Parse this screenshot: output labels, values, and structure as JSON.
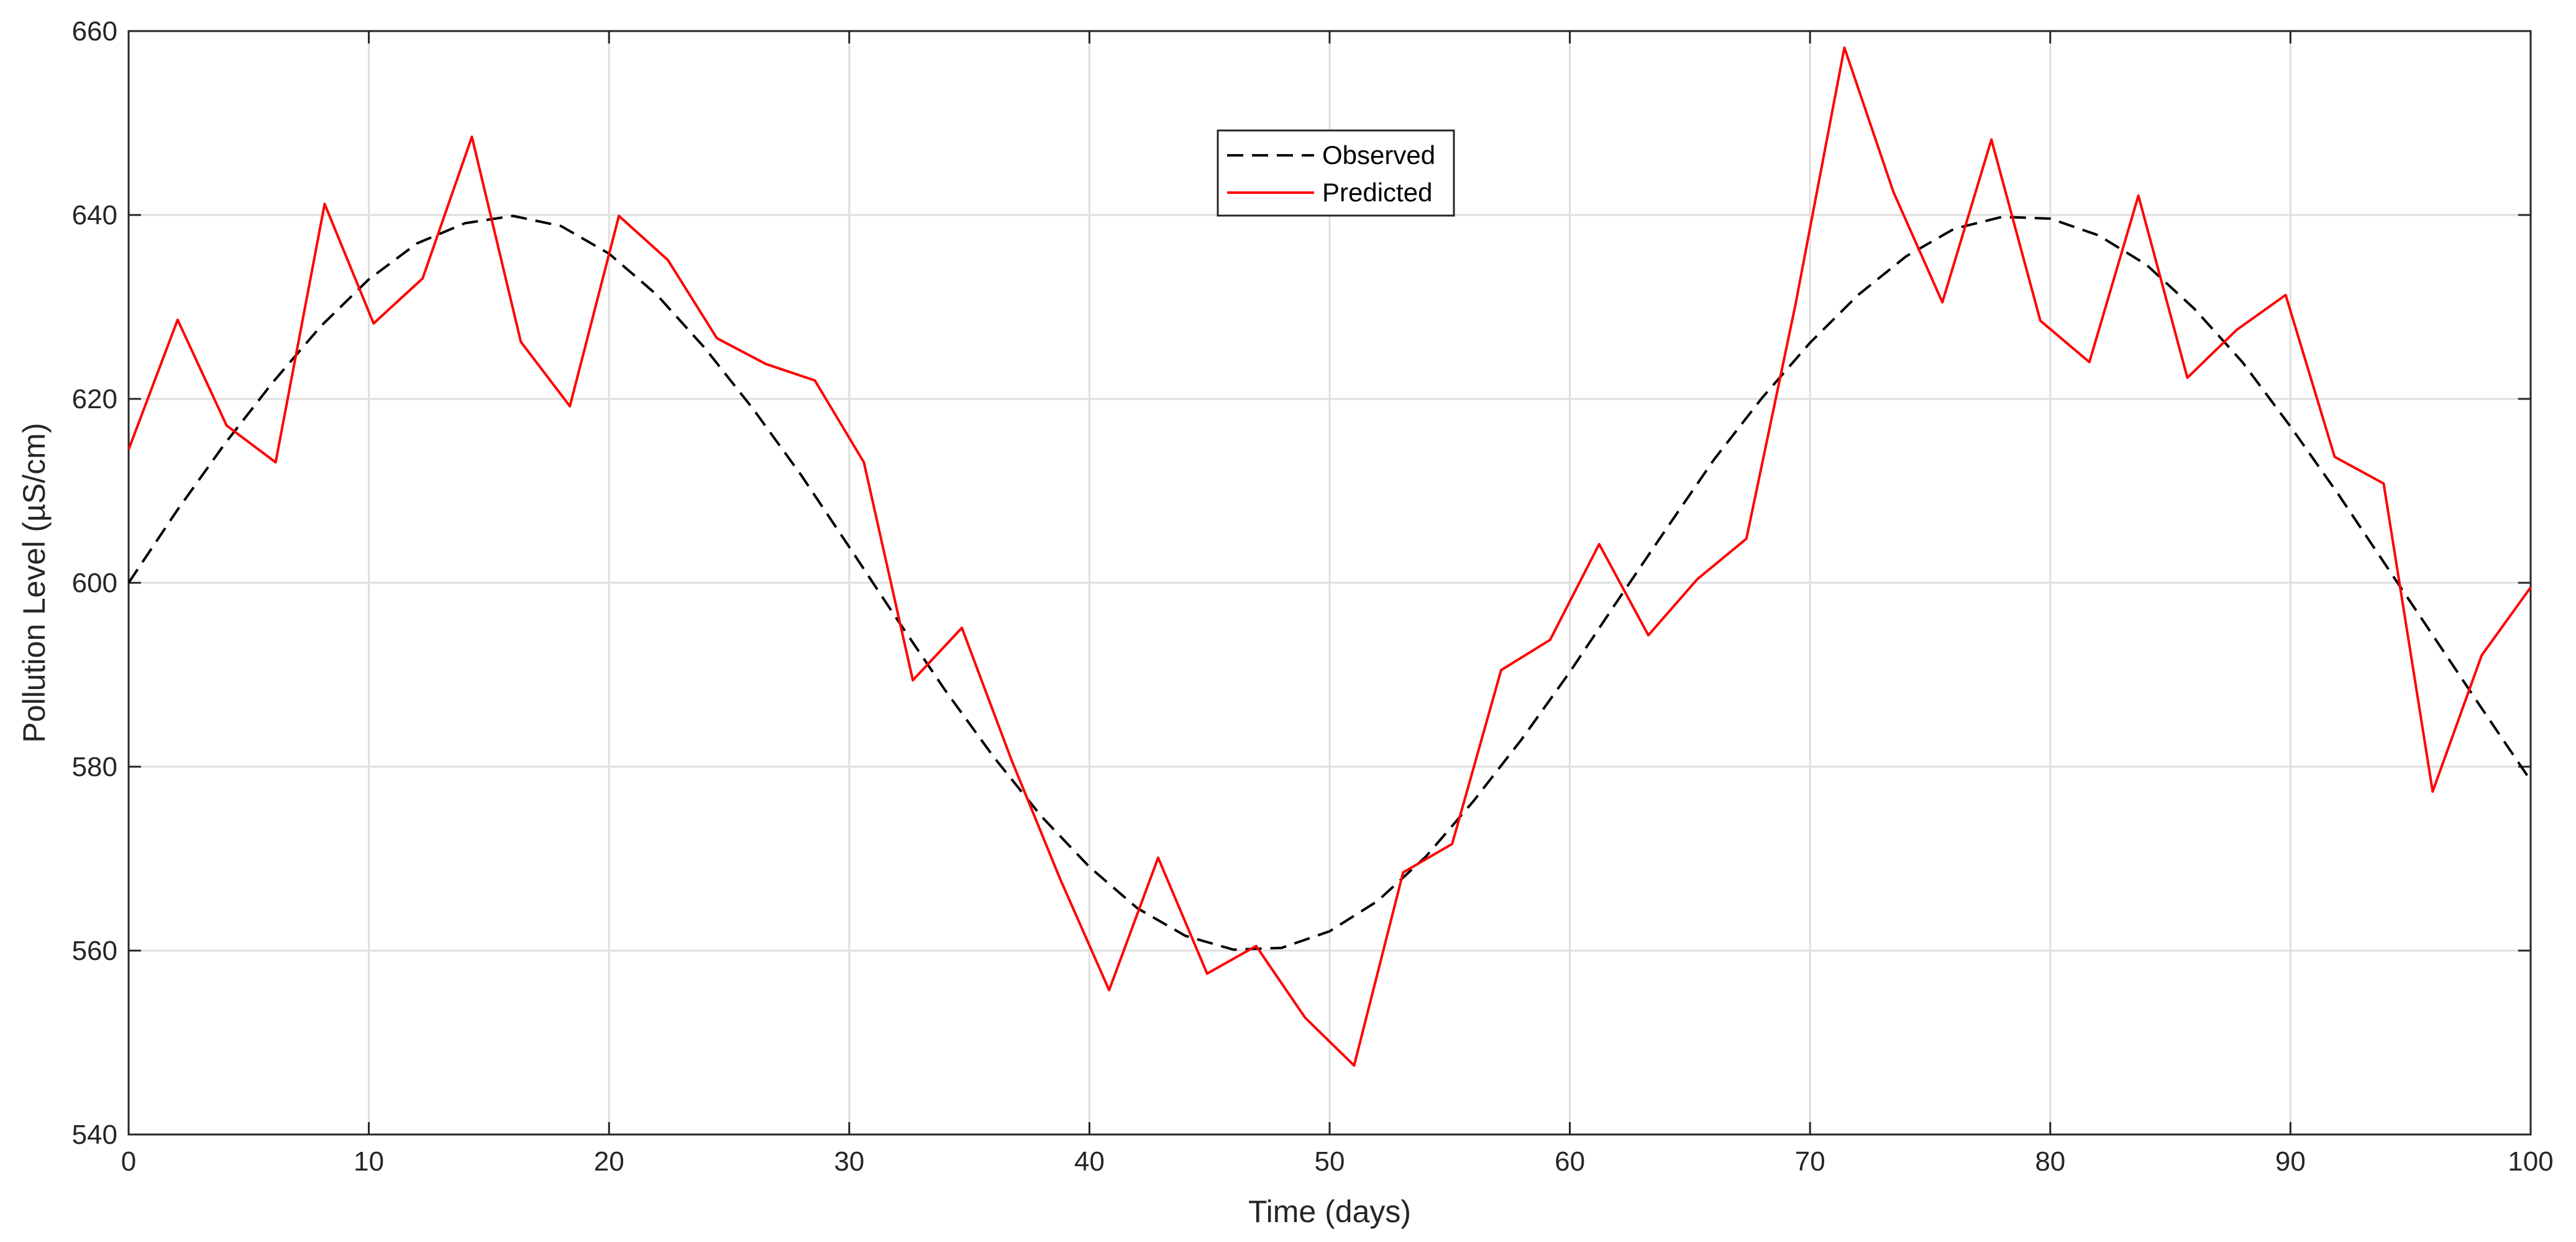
{
  "chart_data": {
    "type": "line",
    "title": "",
    "xlabel": "Time (days)",
    "ylabel": "Pollution Level (µS/cm)",
    "xlim": [
      0,
      100
    ],
    "ylim": [
      540,
      660
    ],
    "x_ticks": [
      "0",
      "10",
      "20",
      "30",
      "40",
      "50",
      "60",
      "70",
      "80",
      "90",
      "100"
    ],
    "y_ticks": [
      "540",
      "560",
      "580",
      "600",
      "620",
      "640",
      "660"
    ],
    "grid": true,
    "legend_position": "top-center",
    "series": [
      {
        "name": "Observed",
        "style": "dashed",
        "color": "#000000",
        "x": [
          0,
          2,
          4,
          6,
          8,
          10,
          12,
          14,
          16,
          18,
          20,
          22,
          24,
          26,
          28,
          30,
          32,
          34,
          36,
          38,
          40,
          42,
          44,
          46,
          48,
          50,
          52,
          54,
          56,
          58,
          60,
          62,
          64,
          66,
          68,
          70,
          72,
          74,
          76,
          78,
          80,
          82,
          84,
          86,
          88,
          90,
          92,
          94,
          96,
          98,
          100
        ],
        "y": [
          600.0,
          607.8,
          615.1,
          621.8,
          627.9,
          633.0,
          636.9,
          639.1,
          639.9,
          638.8,
          635.8,
          631.3,
          625.5,
          618.9,
          611.7,
          603.9,
          596.0,
          588.3,
          581.1,
          574.6,
          569.1,
          564.6,
          561.6,
          560.1,
          560.3,
          562.1,
          565.4,
          570.2,
          576.3,
          583.0,
          590.3,
          598.1,
          605.8,
          613.4,
          620.1,
          626.1,
          631.3,
          635.5,
          638.5,
          639.8,
          639.6,
          637.8,
          634.6,
          629.8,
          624.0,
          617.0,
          609.6,
          601.8,
          594.0,
          586.2,
          578.5
        ]
      },
      {
        "name": "Predicted",
        "style": "solid",
        "color": "#ff0000",
        "x": [
          0,
          2.04,
          4.08,
          6.12,
          8.16,
          10.2,
          12.24,
          14.29,
          16.33,
          18.37,
          20.41,
          22.45,
          24.49,
          26.53,
          28.57,
          30.61,
          32.65,
          34.69,
          36.73,
          38.78,
          40.82,
          42.86,
          44.9,
          46.94,
          48.98,
          51.02,
          53.06,
          55.1,
          57.14,
          59.18,
          61.22,
          63.27,
          65.31,
          67.35,
          69.39,
          71.43,
          73.47,
          75.51,
          77.55,
          79.59,
          81.63,
          83.67,
          85.71,
          87.76,
          89.8,
          91.84,
          93.88,
          95.92,
          97.96,
          100
        ],
        "y": [
          614.5,
          628.6,
          617.1,
          613.1,
          641.2,
          628.2,
          633.1,
          648.5,
          626.2,
          619.2,
          639.9,
          635.1,
          626.6,
          623.8,
          622.0,
          613.1,
          589.4,
          595.1,
          580.9,
          567.8,
          555.7,
          570.1,
          557.5,
          560.5,
          552.7,
          547.5,
          568.5,
          571.6,
          590.5,
          593.8,
          604.2,
          594.3,
          600.4,
          604.8,
          630.2,
          658.2,
          642.5,
          630.5,
          648.2,
          628.5,
          624.0,
          642.1,
          622.3,
          627.5,
          631.3,
          613.7,
          610.8,
          577.3,
          592.1,
          599.5
        ]
      }
    ]
  }
}
